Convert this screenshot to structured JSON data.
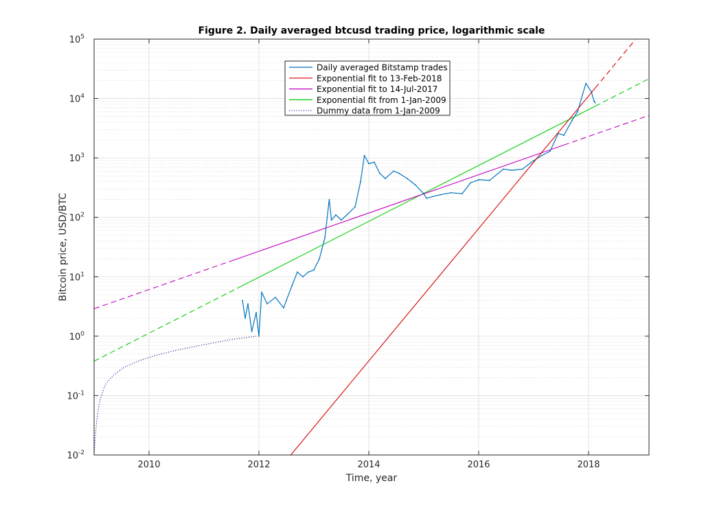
{
  "chart_data": {
    "type": "line",
    "title": "Figure 2. Daily averaged btcusd trading price, logarithmic scale",
    "xlabel": "Time, year",
    "ylabel": "Bitcoin price, USD/BTC",
    "x_unit": "year",
    "xlim": [
      2009.0,
      2019.1
    ],
    "ylim": [
      0.01,
      100000
    ],
    "y_scale": "log",
    "grid": true,
    "minor_grid_y": true,
    "legend_position": "top-center",
    "x_ticks": [
      {
        "value": 2010,
        "label": "2010"
      },
      {
        "value": 2012,
        "label": "2012"
      },
      {
        "value": 2014,
        "label": "2014"
      },
      {
        "value": 2016,
        "label": "2016"
      },
      {
        "value": 2018,
        "label": "2018"
      }
    ],
    "y_ticks": [
      {
        "value": 0.01,
        "base": "10",
        "exp": "-2"
      },
      {
        "value": 0.1,
        "base": "10",
        "exp": "-1"
      },
      {
        "value": 1,
        "base": "10",
        "exp": "0"
      },
      {
        "value": 10,
        "base": "10",
        "exp": "1"
      },
      {
        "value": 100,
        "base": "10",
        "exp": "2"
      },
      {
        "value": 1000,
        "base": "10",
        "exp": "3"
      },
      {
        "value": 10000,
        "base": "10",
        "exp": "4"
      },
      {
        "value": 100000,
        "base": "10",
        "exp": "5"
      }
    ],
    "series": [
      {
        "name": "Daily averaged Bitstamp trades",
        "color": "#0072bd",
        "style": "solid",
        "kind": "points",
        "points": [
          [
            2011.7,
            4.0
          ],
          [
            2011.75,
            2.0
          ],
          [
            2011.8,
            3.5
          ],
          [
            2011.87,
            1.2
          ],
          [
            2011.95,
            2.5
          ],
          [
            2012.0,
            1.0
          ],
          [
            2012.05,
            5.5
          ],
          [
            2012.15,
            3.5
          ],
          [
            2012.3,
            4.5
          ],
          [
            2012.45,
            3.0
          ],
          [
            2012.5,
            4.0
          ],
          [
            2012.6,
            7.0
          ],
          [
            2012.7,
            12.0
          ],
          [
            2012.8,
            10.0
          ],
          [
            2012.9,
            12.0
          ],
          [
            2013.0,
            13.0
          ],
          [
            2013.1,
            20.0
          ],
          [
            2013.2,
            45.0
          ],
          [
            2013.28,
            200.0
          ],
          [
            2013.32,
            90.0
          ],
          [
            2013.4,
            110.0
          ],
          [
            2013.5,
            90.0
          ],
          [
            2013.6,
            110.0
          ],
          [
            2013.75,
            150.0
          ],
          [
            2013.85,
            400.0
          ],
          [
            2013.92,
            1100.0
          ],
          [
            2014.0,
            800.0
          ],
          [
            2014.1,
            850.0
          ],
          [
            2014.2,
            550.0
          ],
          [
            2014.3,
            450.0
          ],
          [
            2014.45,
            600.0
          ],
          [
            2014.55,
            550.0
          ],
          [
            2014.7,
            450.0
          ],
          [
            2014.85,
            350.0
          ],
          [
            2015.0,
            250.0
          ],
          [
            2015.05,
            210.0
          ],
          [
            2015.3,
            240.0
          ],
          [
            2015.5,
            260.0
          ],
          [
            2015.7,
            250.0
          ],
          [
            2015.85,
            380.0
          ],
          [
            2016.0,
            430.0
          ],
          [
            2016.2,
            420.0
          ],
          [
            2016.45,
            650.0
          ],
          [
            2016.6,
            620.0
          ],
          [
            2016.8,
            650.0
          ],
          [
            2017.0,
            900.0
          ],
          [
            2017.15,
            1100.0
          ],
          [
            2017.3,
            1300.0
          ],
          [
            2017.45,
            2600.0
          ],
          [
            2017.55,
            2400.0
          ],
          [
            2017.7,
            4300.0
          ],
          [
            2017.8,
            6000.0
          ],
          [
            2017.95,
            18000.0
          ],
          [
            2018.05,
            13000.0
          ],
          [
            2018.1,
            9000.0
          ],
          [
            2018.12,
            8500.0
          ]
        ]
      },
      {
        "name": "Exponential fit to 13-Feb-2018",
        "color": "#d40000",
        "style": "solid",
        "kind": "exp_fit",
        "anchors": [
          [
            2012.58,
            0.01
          ],
          [
            2018.12,
            15000
          ]
        ],
        "solid_range": [
          2012.58,
          2018.12
        ],
        "dash_range": [
          2018.12,
          2018.85
        ]
      },
      {
        "name": "Exponential fit to 14-Jul-2017",
        "color": "#c000c0",
        "style": "solid",
        "kind": "exp_fit",
        "anchors": [
          [
            2009.0,
            2.9
          ],
          [
            2019.1,
            5200
          ]
        ],
        "solid_range": [
          2011.5,
          2017.55
        ],
        "dash_range": [
          2009.0,
          2011.5
        ],
        "dash_range_2": [
          2017.55,
          2019.1
        ]
      },
      {
        "name": "Exponential fit from 1-Jan-2009",
        "color": "#00cc00",
        "style": "solid",
        "kind": "exp_fit",
        "anchors": [
          [
            2009.0,
            0.38
          ],
          [
            2019.1,
            21500
          ]
        ],
        "solid_range": [
          2011.6,
          2018.12
        ],
        "dash_range": [
          2009.0,
          2011.6
        ],
        "dash_range_2": [
          2018.12,
          2019.1
        ]
      },
      {
        "name": "Dummy data from 1-Jan-2009",
        "color": "#00008b",
        "style": "dotted",
        "kind": "curve",
        "points": [
          [
            2009.0,
            0.01
          ],
          [
            2009.02,
            0.02
          ],
          [
            2009.05,
            0.04
          ],
          [
            2009.1,
            0.08
          ],
          [
            2009.2,
            0.15
          ],
          [
            2009.35,
            0.22
          ],
          [
            2009.55,
            0.3
          ],
          [
            2009.8,
            0.38
          ],
          [
            2010.1,
            0.47
          ],
          [
            2010.5,
            0.58
          ],
          [
            2011.0,
            0.72
          ],
          [
            2011.5,
            0.88
          ],
          [
            2011.95,
            1.0
          ]
        ]
      }
    ]
  }
}
